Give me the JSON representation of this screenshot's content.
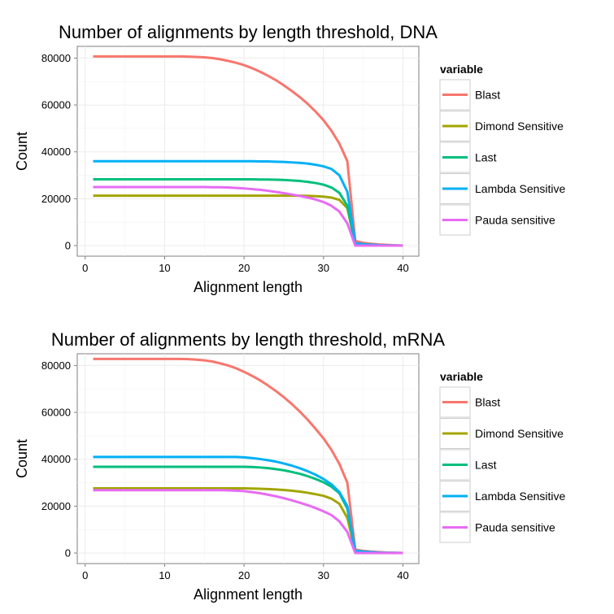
{
  "chart_data": [
    {
      "type": "line",
      "title": "Number of alignments by length threshold, DNA",
      "xlabel": "Alignment length",
      "ylabel": "Count",
      "xlim": [
        0,
        40
      ],
      "ylim": [
        0,
        80000
      ],
      "x_ticks": [
        "0",
        "10",
        "20",
        "30",
        "40"
      ],
      "y_ticks": [
        "0",
        "20000",
        "40000",
        "60000",
        "80000"
      ],
      "grid": true,
      "legend": {
        "title": "variable",
        "position": "right"
      },
      "x": [
        1,
        2,
        3,
        4,
        5,
        6,
        7,
        8,
        9,
        10,
        11,
        12,
        13,
        14,
        15,
        16,
        17,
        18,
        19,
        20,
        21,
        22,
        23,
        24,
        25,
        26,
        27,
        28,
        29,
        30,
        31,
        32,
        33,
        34,
        35,
        36,
        37,
        38,
        39,
        40
      ],
      "series": [
        {
          "name": "Blast",
          "color": "#F8766D",
          "values": [
            80700,
            80700,
            80700,
            80700,
            80700,
            80700,
            80700,
            80700,
            80700,
            80700,
            80700,
            80700,
            80600,
            80500,
            80300,
            80000,
            79500,
            78800,
            78000,
            77000,
            75700,
            74200,
            72500,
            70600,
            68400,
            66000,
            63400,
            60500,
            57200,
            53500,
            49000,
            43500,
            36000,
            2000,
            1200,
            800,
            500,
            300,
            150,
            50
          ]
        },
        {
          "name": "Dimond Sensitive",
          "color": "#A3A500",
          "values": [
            21300,
            21300,
            21300,
            21300,
            21300,
            21300,
            21300,
            21300,
            21300,
            21300,
            21300,
            21300,
            21300,
            21300,
            21300,
            21300,
            21300,
            21300,
            21300,
            21300,
            21300,
            21300,
            21300,
            21300,
            21300,
            21300,
            21300,
            21200,
            21100,
            20900,
            20500,
            19500,
            16000,
            500,
            300,
            200,
            100,
            50,
            20,
            0
          ]
        },
        {
          "name": "Last",
          "color": "#00BF7D",
          "values": [
            28300,
            28300,
            28300,
            28300,
            28300,
            28300,
            28300,
            28300,
            28300,
            28300,
            28300,
            28300,
            28300,
            28300,
            28300,
            28300,
            28300,
            28300,
            28300,
            28300,
            28300,
            28200,
            28200,
            28100,
            28000,
            27800,
            27600,
            27200,
            26700,
            26000,
            24800,
            22500,
            17000,
            800,
            500,
            300,
            200,
            100,
            50,
            20
          ]
        },
        {
          "name": "Lambda Sensitive",
          "color": "#00B0F6",
          "values": [
            36000,
            36000,
            36000,
            36000,
            36000,
            36000,
            36000,
            36000,
            36000,
            36000,
            36000,
            36000,
            36000,
            36000,
            36000,
            36000,
            36000,
            36000,
            36000,
            36000,
            36000,
            35900,
            35900,
            35800,
            35700,
            35500,
            35300,
            35000,
            34500,
            33800,
            32700,
            30000,
            23000,
            1000,
            600,
            400,
            200,
            100,
            50,
            20
          ]
        },
        {
          "name": "Pauda sensitive",
          "color": "#E76BF3",
          "values": [
            25000,
            25000,
            25000,
            25000,
            25000,
            25000,
            25000,
            25000,
            25000,
            25000,
            25000,
            25000,
            25000,
            25000,
            25000,
            24900,
            24900,
            24800,
            24600,
            24400,
            24100,
            23800,
            23400,
            22900,
            22400,
            21800,
            21200,
            20500,
            19700,
            18600,
            17000,
            14500,
            9500,
            0,
            0,
            0,
            0,
            0,
            0,
            0
          ]
        }
      ]
    },
    {
      "type": "line",
      "title": "Number of alignments by length threshold, mRNA",
      "xlabel": "Alignment length",
      "ylabel": "Count",
      "xlim": [
        0,
        40
      ],
      "ylim": [
        0,
        80000
      ],
      "x_ticks": [
        "0",
        "10",
        "20",
        "30",
        "40"
      ],
      "y_ticks": [
        "0",
        "20000",
        "40000",
        "60000",
        "80000"
      ],
      "grid": true,
      "legend": {
        "title": "variable",
        "position": "right"
      },
      "x": [
        1,
        2,
        3,
        4,
        5,
        6,
        7,
        8,
        9,
        10,
        11,
        12,
        13,
        14,
        15,
        16,
        17,
        18,
        19,
        20,
        21,
        22,
        23,
        24,
        25,
        26,
        27,
        28,
        29,
        30,
        31,
        32,
        33,
        34,
        35,
        36,
        37,
        38,
        39,
        40
      ],
      "series": [
        {
          "name": "Blast",
          "color": "#F8766D",
          "values": [
            82800,
            82800,
            82800,
            82800,
            82800,
            82800,
            82800,
            82800,
            82800,
            82800,
            82800,
            82800,
            82700,
            82500,
            82200,
            81700,
            80900,
            80000,
            78800,
            77300,
            75600,
            73700,
            71500,
            69100,
            66500,
            63600,
            60400,
            56900,
            53000,
            48900,
            44000,
            38000,
            30000,
            1500,
            900,
            600,
            400,
            200,
            100,
            50
          ]
        },
        {
          "name": "Dimond Sensitive",
          "color": "#A3A500",
          "values": [
            27600,
            27600,
            27600,
            27600,
            27600,
            27600,
            27600,
            27600,
            27600,
            27600,
            27600,
            27600,
            27600,
            27600,
            27600,
            27600,
            27600,
            27600,
            27600,
            27600,
            27500,
            27400,
            27300,
            27100,
            26900,
            26600,
            26200,
            25700,
            25100,
            24400,
            23200,
            21000,
            15000,
            500,
            300,
            200,
            100,
            50,
            20,
            0
          ]
        },
        {
          "name": "Last",
          "color": "#00BF7D",
          "values": [
            36800,
            36800,
            36800,
            36800,
            36800,
            36800,
            36800,
            36800,
            36800,
            36800,
            36800,
            36800,
            36800,
            36800,
            36800,
            36800,
            36800,
            36800,
            36800,
            36800,
            36700,
            36500,
            36200,
            35800,
            35300,
            34600,
            33800,
            32800,
            31600,
            30200,
            28300,
            25500,
            19000,
            800,
            500,
            300,
            200,
            100,
            50,
            20
          ]
        },
        {
          "name": "Lambda Sensitive",
          "color": "#00B0F6",
          "values": [
            41000,
            41000,
            41000,
            41000,
            41000,
            41000,
            41000,
            41000,
            41000,
            41000,
            41000,
            41000,
            41000,
            41000,
            41000,
            41000,
            41000,
            41000,
            41000,
            40800,
            40500,
            40100,
            39600,
            39000,
            38200,
            37300,
            36200,
            34900,
            33400,
            31600,
            29300,
            26000,
            20000,
            1000,
            600,
            400,
            200,
            100,
            50,
            20
          ]
        },
        {
          "name": "Pauda sensitive",
          "color": "#E76BF3",
          "values": [
            26800,
            26800,
            26800,
            26800,
            26800,
            26800,
            26800,
            26800,
            26800,
            26800,
            26800,
            26800,
            26800,
            26800,
            26800,
            26800,
            26800,
            26700,
            26600,
            26400,
            26000,
            25500,
            24900,
            24200,
            23400,
            22500,
            21500,
            20400,
            19200,
            17800,
            16200,
            13500,
            9000,
            0,
            0,
            0,
            0,
            0,
            0,
            0
          ]
        }
      ]
    }
  ]
}
